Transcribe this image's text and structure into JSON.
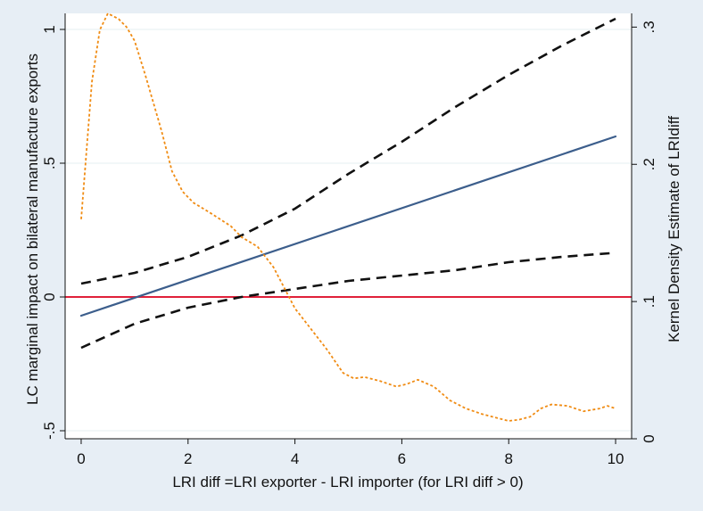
{
  "chart_data": {
    "type": "line",
    "xlabel": "LRI diff =LRI exporter - LRI importer (for LRI diff > 0)",
    "ylabel_left": "LC marginal impact on bilateral manufacture exports",
    "ylabel_right": "Kernel Density Estimate of LRIdiff",
    "xlim": [
      -0.3,
      10.3
    ],
    "ylim_left": [
      -0.53,
      1.06
    ],
    "ylim_right": [
      0.0,
      0.31
    ],
    "x_ticks": [
      0,
      2,
      4,
      6,
      8,
      10
    ],
    "x_tick_labels": [
      "0",
      "2",
      "4",
      "6",
      "8",
      "10"
    ],
    "y_left_ticks": [
      -0.5,
      0,
      0.5,
      1
    ],
    "y_left_tick_labels": [
      "-.5",
      "0",
      ".5",
      "1"
    ],
    "y_right_ticks": [
      0.0,
      0.1,
      0.2,
      0.3
    ],
    "y_right_tick_labels": [
      "0",
      ".1",
      ".2",
      ".3"
    ],
    "grid": "horizontal at left-axis ticks",
    "reference_line": {
      "axis": "left",
      "y": 0,
      "color": "#e0203a"
    },
    "series": [
      {
        "axis": "left",
        "style": "solid",
        "color": "#3c5e8c",
        "x": [
          0,
          10
        ],
        "y": [
          -0.07,
          0.6
        ]
      },
      {
        "axis": "left",
        "style": "dashed",
        "color": "#111111",
        "x": [
          0,
          1,
          2,
          3,
          4,
          5,
          6,
          7,
          8,
          9,
          10
        ],
        "y": [
          0.05,
          0.09,
          0.15,
          0.23,
          0.33,
          0.46,
          0.58,
          0.71,
          0.83,
          0.94,
          1.04
        ]
      },
      {
        "axis": "left",
        "style": "dashed",
        "color": "#111111",
        "x": [
          0,
          1,
          2,
          3,
          4,
          5,
          6,
          7,
          8,
          9,
          10
        ],
        "y": [
          -0.19,
          -0.1,
          -0.04,
          0.0,
          0.03,
          0.06,
          0.08,
          0.1,
          0.13,
          0.15,
          0.165
        ]
      },
      {
        "axis": "right",
        "style": "dotted",
        "color": "#f08c14",
        "x": [
          0,
          0.2,
          0.35,
          0.5,
          0.7,
          0.85,
          1.0,
          1.2,
          1.5,
          1.7,
          1.9,
          2.1,
          2.4,
          2.6,
          2.8,
          3.0,
          3.3,
          3.6,
          3.8,
          4.0,
          4.3,
          4.6,
          4.9,
          5.1,
          5.3,
          5.6,
          5.9,
          6.1,
          6.3,
          6.6,
          6.9,
          7.2,
          7.5,
          7.8,
          8.0,
          8.2,
          8.4,
          8.6,
          8.8,
          9.1,
          9.4,
          9.7,
          9.85,
          10.0
        ],
        "y": [
          0.16,
          0.26,
          0.298,
          0.31,
          0.306,
          0.3,
          0.29,
          0.265,
          0.225,
          0.195,
          0.18,
          0.172,
          0.165,
          0.16,
          0.155,
          0.147,
          0.14,
          0.125,
          0.11,
          0.095,
          0.08,
          0.065,
          0.048,
          0.044,
          0.045,
          0.042,
          0.038,
          0.04,
          0.043,
          0.038,
          0.028,
          0.022,
          0.018,
          0.015,
          0.013,
          0.014,
          0.016,
          0.022,
          0.025,
          0.024,
          0.02,
          0.022,
          0.024,
          0.022
        ]
      }
    ]
  }
}
